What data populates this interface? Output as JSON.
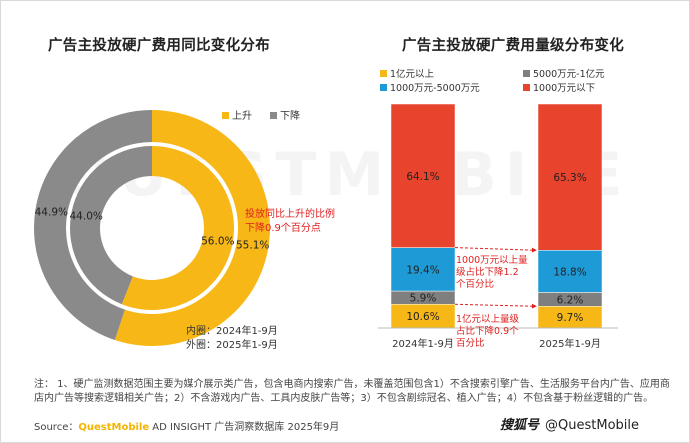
{
  "left_title": "广告主投放硬广费用同比变化分布",
  "right_title": "广告主投放硬广费用量级分布变化",
  "watermark": "QUESTMOBILE",
  "colors": {
    "up": "#f7b817",
    "down": "#8a8a8a",
    "tier1": "#f7b817",
    "tier2": "#7f7f7f",
    "tier3": "#1e9ad6",
    "tier4": "#e8432c",
    "annotation": "#e02020"
  },
  "donut": {
    "legend": [
      "上升",
      "下降"
    ],
    "inner_caption": "内圈：2024年1-9月",
    "outer_caption": "外圈：2025年1-9月",
    "callout": [
      "投放同比上升的比例",
      "下降0.9个百分点"
    ]
  },
  "stack": {
    "legend": [
      "1亿元以上",
      "5000万元-1亿元",
      "1000万元-5000万元",
      "1000万元以下"
    ],
    "callout_mid": [
      "1000万元以上量",
      "级占比下降1.2",
      "个百分比"
    ],
    "callout_low": [
      "1亿元以上量级",
      "占比下降0.9个",
      "百分比"
    ]
  },
  "chart_data": [
    {
      "type": "pie",
      "title": "广告主投放硬广费用同比变化分布",
      "categories": [
        "上升",
        "下降"
      ],
      "series": [
        {
          "name": "内圈：2024年1-9月",
          "values": [
            56.0,
            44.0
          ]
        },
        {
          "name": "外圈：2025年1-9月",
          "values": [
            55.1,
            44.9
          ]
        }
      ],
      "legend": "top-right"
    },
    {
      "type": "bar",
      "title": "广告主投放硬广费用量级分布变化",
      "stacked": true,
      "categories": [
        "2024年1-9月",
        "2025年1-9月"
      ],
      "series": [
        {
          "name": "1亿元以上",
          "values": [
            10.6,
            9.7
          ]
        },
        {
          "name": "5000万元-1亿元",
          "values": [
            5.9,
            6.2
          ]
        },
        {
          "name": "1000万元-5000万元",
          "values": [
            19.4,
            18.8
          ]
        },
        {
          "name": "1000万元以下",
          "values": [
            64.1,
            65.3
          ]
        }
      ],
      "ylim": [
        0,
        100
      ],
      "legend": "top"
    }
  ],
  "note": "注：  1、硬广监测数据范围主要为媒介展示类广告，包含电商内搜索广告，未覆盖范围包含1）不含搜索引擎广告、生活服务平台内广告、应用商店内广告等搜索逻辑相关广告；2）不含游戏内广告、工具内皮肤广告等；3）不包含剧综冠名、植入广告；4）不包含基于粉丝逻辑的广告。",
  "source": {
    "label": "Source：",
    "brand": "QuestMobile",
    "rest": " AD INSIGHT 广告洞察数据库 2025年9月"
  },
  "footer": {
    "hand": "搜狐号",
    "account": "@QuestMobile"
  }
}
